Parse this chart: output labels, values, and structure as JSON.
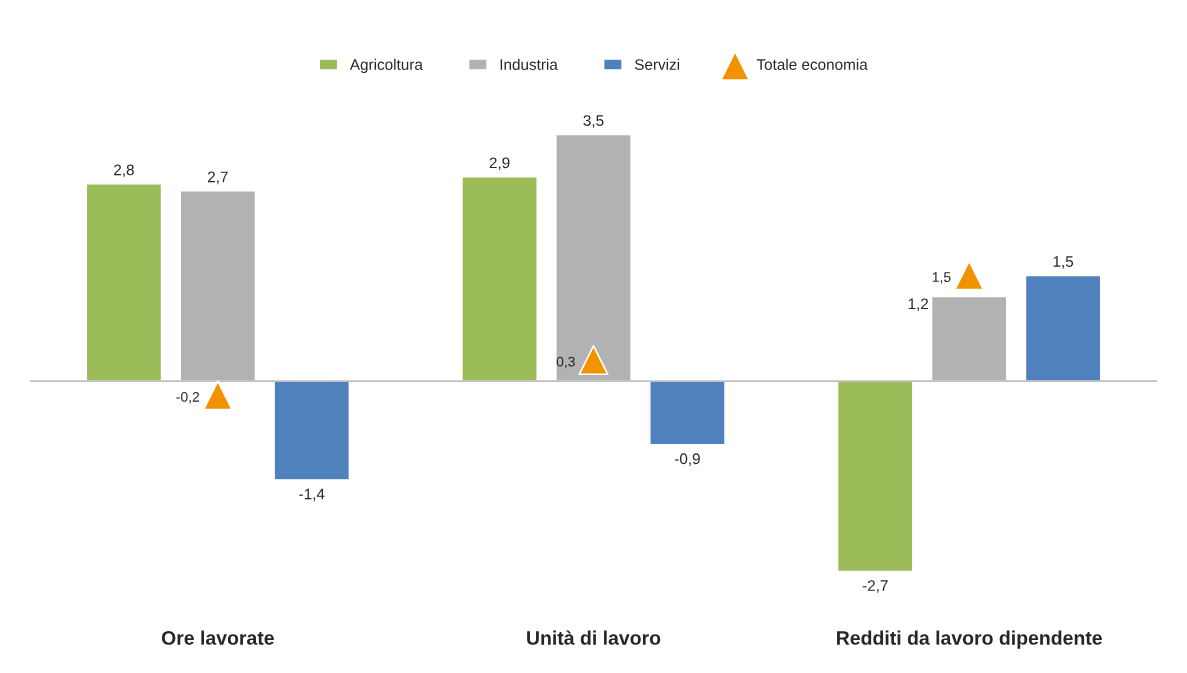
{
  "chart_data": {
    "type": "bar",
    "categories": [
      "Ore lavorate",
      "Unità di lavoro",
      "Redditi da lavoro dipendente"
    ],
    "series": [
      {
        "name": "Agricoltura",
        "color": "#9bbb59",
        "values": [
          2.8,
          2.9,
          -2.7
        ],
        "value_labels": [
          "2,8",
          "2,9",
          "-2,7"
        ]
      },
      {
        "name": "Industria",
        "color": "#b2b2b2",
        "values": [
          2.7,
          3.5,
          1.2
        ],
        "value_labels": [
          "2,7",
          "3,5",
          "1,2"
        ]
      },
      {
        "name": "Servizi",
        "color": "#4f81bd",
        "values": [
          -1.4,
          -0.9,
          1.5
        ],
        "value_labels": [
          "-1,4",
          "-0,9",
          "1,5"
        ]
      },
      {
        "name": "Totale economia",
        "type": "scatter",
        "color": "#f39200",
        "marker": "triangle",
        "x": [
          "Ore lavorate",
          "Unità di lavoro",
          "Redditi da lavoro dipendente"
        ],
        "values": [
          -0.2,
          0.3,
          1.5
        ],
        "value_labels": [
          "-0,2",
          "0,3",
          "1,5"
        ]
      }
    ],
    "legend": "top",
    "grid": false
  }
}
